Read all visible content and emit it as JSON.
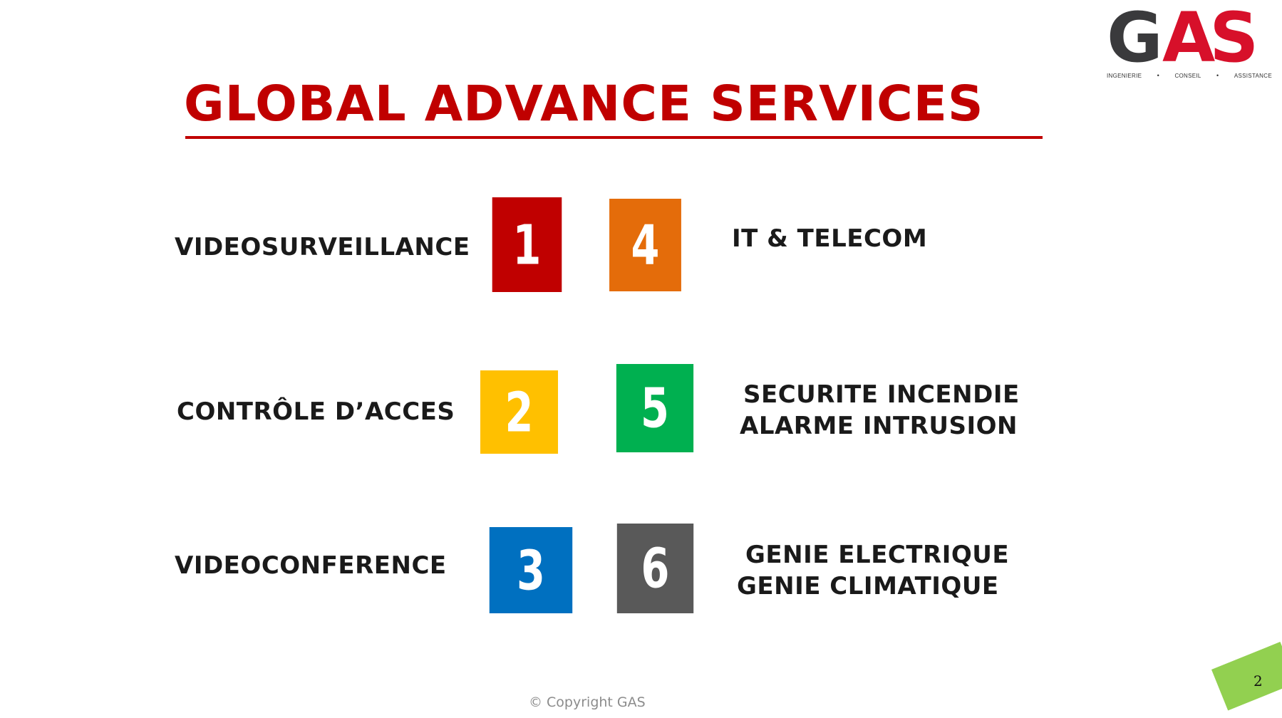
{
  "logo": {
    "text": "GAS",
    "tagline": [
      "INGENIERIE",
      "CONSEIL",
      "ASSISTANCE"
    ],
    "colors": {
      "dark": "#3a3a3c",
      "red": "#d7102a"
    }
  },
  "title": "GLOBAL ADVANCE SERVICES",
  "services": [
    {
      "number": "1",
      "label": "VIDEOSURVEILLANCE",
      "color": "#c00000"
    },
    {
      "number": "2",
      "label": "CONTRÔLE D’ACCES",
      "color": "#ffc000"
    },
    {
      "number": "3",
      "label": "VIDEOCONFERENCE",
      "color": "#0070c0"
    },
    {
      "number": "4",
      "label": "IT & TELECOM",
      "color": "#e46c0a"
    },
    {
      "number": "5",
      "label_lines": [
        "SECURITE INCENDIE",
        "ALARME INTRUSION"
      ],
      "color": "#00b050"
    },
    {
      "number": "6",
      "label_lines": [
        "GENIE ELECTRIQUE",
        "GENIE CLIMATIQUE"
      ],
      "color": "#595959"
    }
  ],
  "footer": {
    "copyright": "© Copyright GAS",
    "page_number": "2",
    "page_tag_color": "#92d050"
  }
}
